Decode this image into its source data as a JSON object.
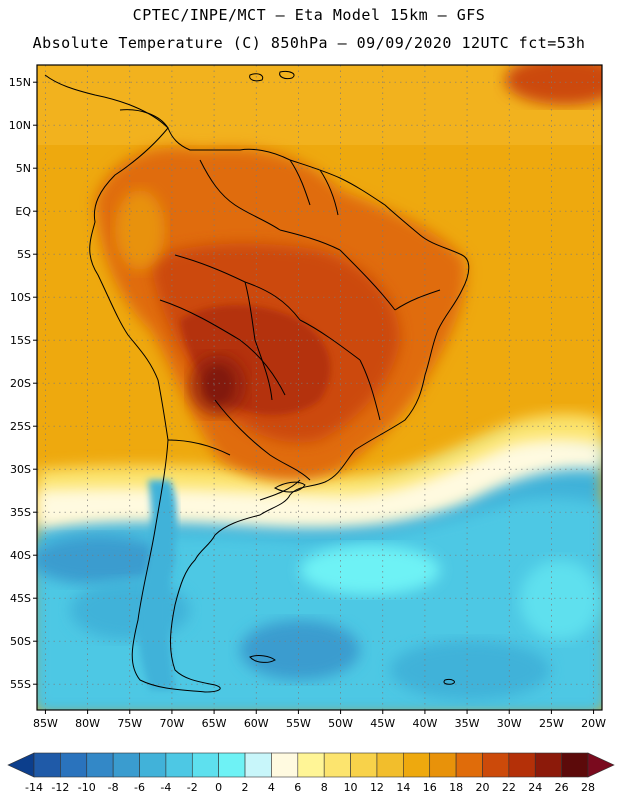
{
  "header": {
    "line1": "CPTEC/INPE/MCT –  Eta Model 15km – GFS",
    "line2": "Absolute Temperature (C) 850hPa – 09/09/2020 12UTC fct=53h"
  },
  "map": {
    "lon_range": [
      -86,
      -19
    ],
    "lat_range": [
      -58,
      17
    ],
    "lat_ticks": [
      {
        "value": 15,
        "label": "15N"
      },
      {
        "value": 10,
        "label": "10N"
      },
      {
        "value": 5,
        "label": "5N"
      },
      {
        "value": 0,
        "label": "EQ"
      },
      {
        "value": -5,
        "label": "5S"
      },
      {
        "value": -10,
        "label": "10S"
      },
      {
        "value": -15,
        "label": "15S"
      },
      {
        "value": -20,
        "label": "20S"
      },
      {
        "value": -25,
        "label": "25S"
      },
      {
        "value": -30,
        "label": "30S"
      },
      {
        "value": -35,
        "label": "35S"
      },
      {
        "value": -40,
        "label": "40S"
      },
      {
        "value": -45,
        "label": "45S"
      },
      {
        "value": -50,
        "label": "50S"
      },
      {
        "value": -55,
        "label": "55S"
      }
    ],
    "lon_ticks": [
      {
        "value": -85,
        "label": "85W"
      },
      {
        "value": -80,
        "label": "80W"
      },
      {
        "value": -75,
        "label": "75W"
      },
      {
        "value": -70,
        "label": "70W"
      },
      {
        "value": -65,
        "label": "65W"
      },
      {
        "value": -60,
        "label": "60W"
      },
      {
        "value": -55,
        "label": "55W"
      },
      {
        "value": -50,
        "label": "50W"
      },
      {
        "value": -45,
        "label": "45W"
      },
      {
        "value": -40,
        "label": "40W"
      },
      {
        "value": -35,
        "label": "35W"
      },
      {
        "value": -30,
        "label": "30W"
      },
      {
        "value": -25,
        "label": "25W"
      },
      {
        "value": -20,
        "label": "20W"
      }
    ]
  },
  "colorbar": {
    "labels": [
      "-14",
      "-12",
      "-10",
      "-8",
      "-6",
      "-4",
      "-2",
      "0",
      "2",
      "4",
      "6",
      "8",
      "10",
      "12",
      "14",
      "16",
      "18",
      "20",
      "22",
      "24",
      "26",
      "28"
    ],
    "colors": [
      "#0c3e8c",
      "#1f5aa8",
      "#2a73bd",
      "#3388c7",
      "#3a9ccf",
      "#41b2d9",
      "#4dc8e4",
      "#5ee0ee",
      "#6ef2f5",
      "#c8f6fa",
      "#fffae0",
      "#fff596",
      "#fce46e",
      "#f8d24a",
      "#f2be2c",
      "#eea90e",
      "#e8920a",
      "#e06c0a",
      "#cc4a0a",
      "#b43008",
      "#8c1a0a",
      "#5c0a0a",
      "#7a0a1e"
    ]
  }
}
